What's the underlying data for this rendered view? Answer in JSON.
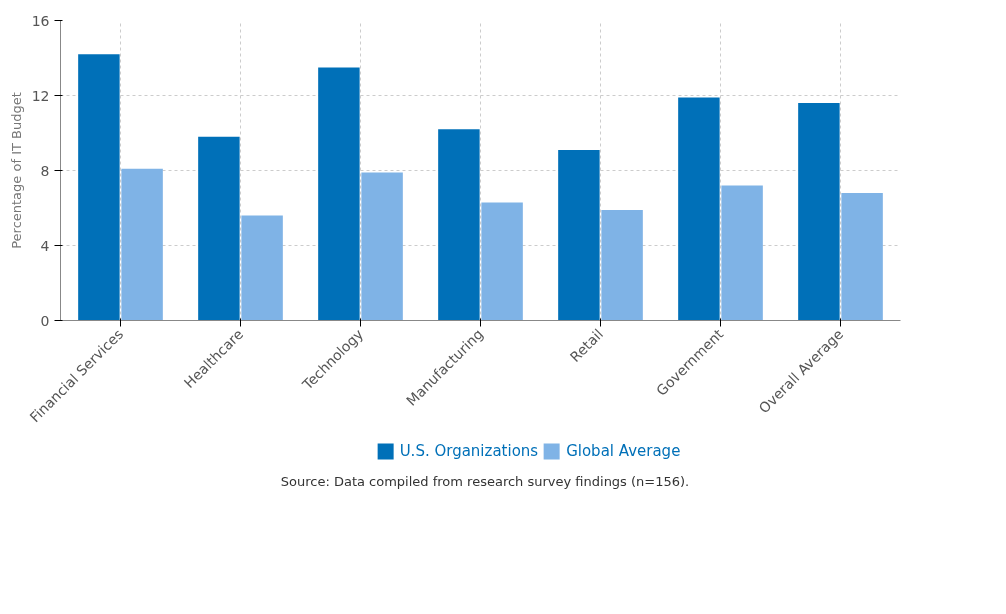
{
  "chart_data": {
    "type": "bar",
    "ylabel": "Percentage of IT Budget",
    "categories": [
      "Financial Services",
      "Healthcare",
      "Technology",
      "Manufacturing",
      "Retail",
      "Government",
      "Overall Average"
    ],
    "series": [
      {
        "name": "U.S. Organizations",
        "color": "#0070b8",
        "values": [
          14.2,
          9.8,
          13.5,
          10.2,
          9.1,
          11.9,
          11.6
        ]
      },
      {
        "name": "Global Average",
        "color": "#7fb3e6",
        "values": [
          8.1,
          5.6,
          7.9,
          6.3,
          5.9,
          7.2,
          6.8
        ]
      }
    ],
    "ylim": [
      0,
      16
    ],
    "yticks": [
      0,
      4,
      8,
      12,
      16
    ],
    "grid": true,
    "legend": "bottom",
    "annotations": [
      "Source: Data compiled from research survey findings (n=156)."
    ]
  }
}
